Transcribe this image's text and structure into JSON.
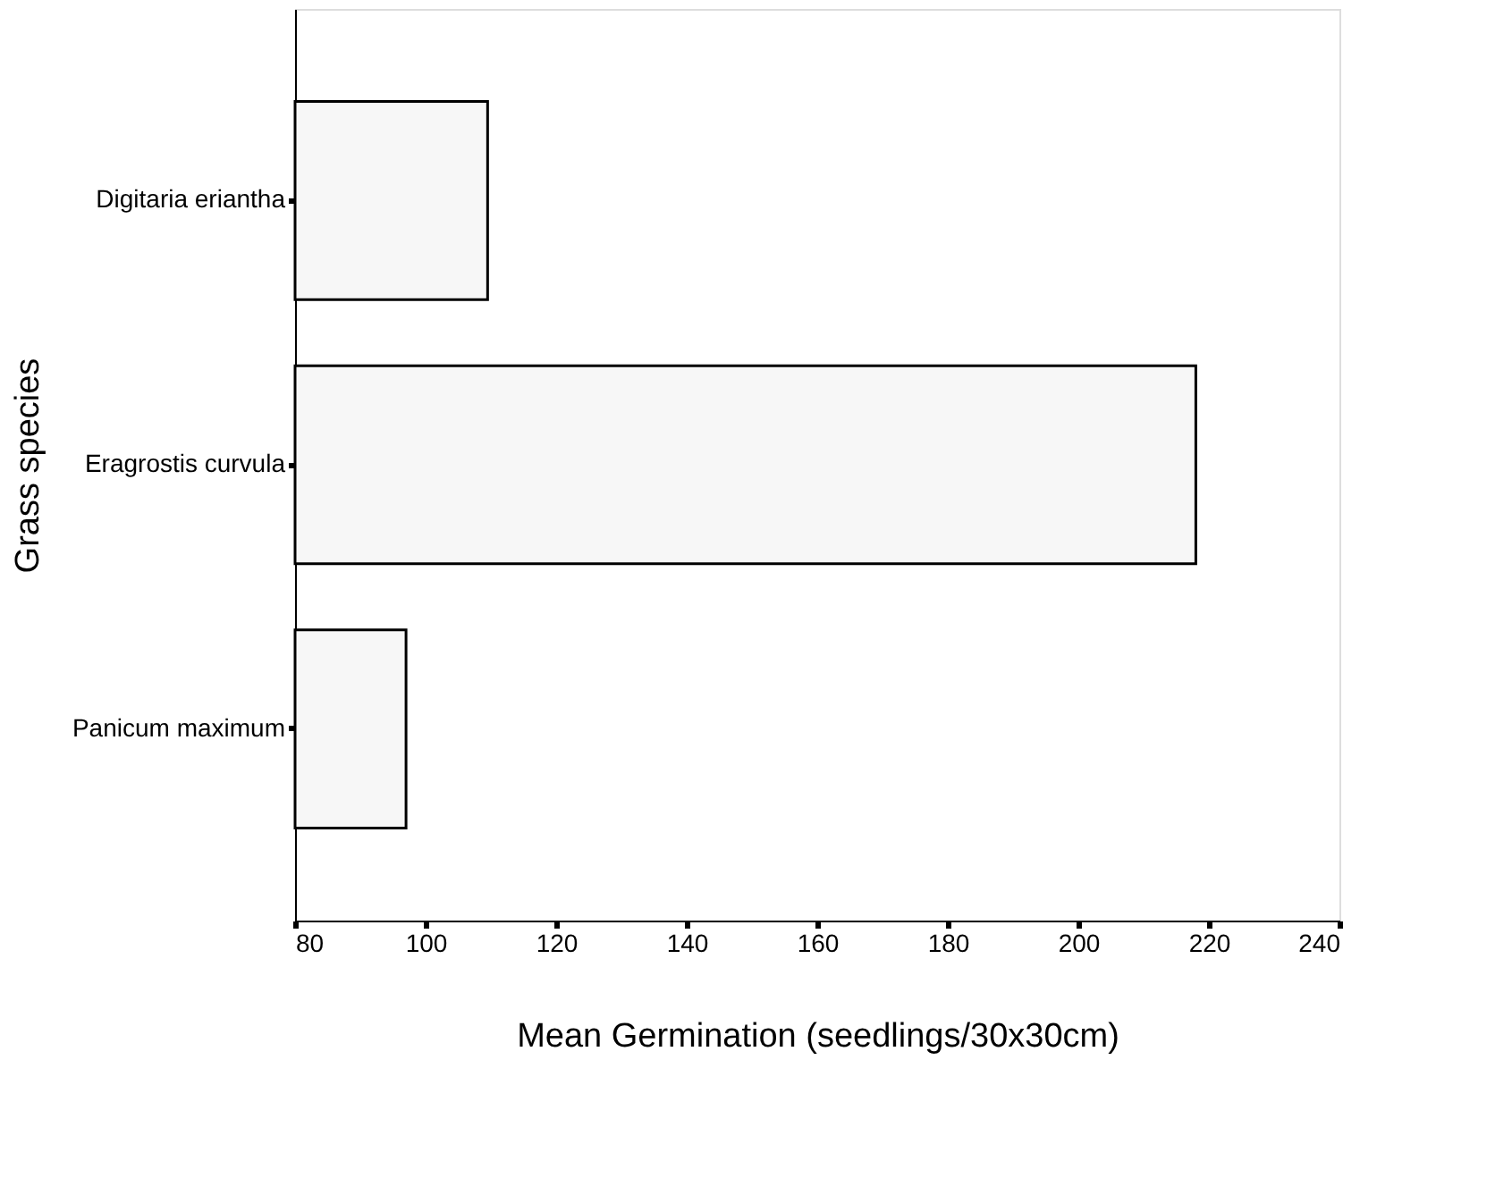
{
  "chart_data": {
    "type": "bar",
    "orientation": "horizontal",
    "categories": [
      "Digitaria eriantha",
      "Eragrostis curvula",
      "Panicum maximum"
    ],
    "values": [
      109.5,
      218,
      97
    ],
    "color": "#f7f7f7",
    "xlim": [
      80,
      240
    ],
    "xticks": [
      80,
      100,
      120,
      140,
      160,
      180,
      200,
      220,
      240
    ],
    "xlabel": "Mean Germination (seedlings/30x30cm)",
    "ylabel": "Grass species",
    "grid": false
  }
}
